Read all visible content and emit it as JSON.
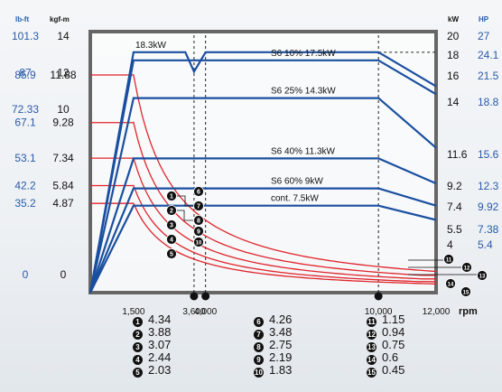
{
  "chart_data": {
    "type": "line",
    "xlabel": "rpm",
    "x_ticks": [
      "1,500",
      "3,600",
      "4,000",
      "10,000",
      "12,000"
    ],
    "xlim": [
      0,
      12000
    ],
    "left_axis_headers": [
      "lb-ft",
      "kgf-m"
    ],
    "lbft_ticks": [
      "101.3",
      "87",
      "85.9",
      "72.33",
      "67.1",
      "53.1",
      "42.2",
      "35.2",
      "0"
    ],
    "kgfm_ticks": [
      "14",
      "12",
      "11.88",
      "10",
      "9.28",
      "7.34",
      "5.84",
      "4.87",
      "0"
    ],
    "kgfm_tick_values": [
      14,
      12,
      11.88,
      10,
      9.28,
      7.34,
      5.84,
      4.87,
      0
    ],
    "right_axis_headers": [
      "kW",
      "HP"
    ],
    "kw_ticks": [
      "20",
      "18",
      "16",
      "14",
      "11.6",
      "9.2",
      "7.4",
      "5.5",
      "4"
    ],
    "kw_tick_values": [
      20,
      18,
      16,
      14,
      11.6,
      9.2,
      7.4,
      5.5,
      4
    ],
    "hp_ticks": [
      "27",
      "24.1",
      "21.5",
      "18.8",
      "15.6",
      "12.3",
      "9.92",
      "7.38",
      "5.4"
    ],
    "power_series": [
      {
        "name": "18.3kW",
        "points": [
          [
            0,
            0
          ],
          [
            1500,
            18.3
          ],
          [
            3300,
            18.3
          ],
          [
            3600,
            16.4
          ],
          [
            4000,
            18.3
          ],
          [
            10000,
            18.3
          ],
          [
            12000,
            15.2
          ]
        ]
      },
      {
        "name": "S6  10% 17.5kW",
        "points": [
          [
            0,
            0
          ],
          [
            1500,
            17.5
          ],
          [
            3600,
            17.5
          ],
          [
            10000,
            17.5
          ],
          [
            12000,
            14.6
          ]
        ]
      },
      {
        "name": "S6  25% 14.3kW",
        "points": [
          [
            0,
            0
          ],
          [
            1500,
            14.3
          ],
          [
            3600,
            14.3
          ],
          [
            10000,
            14.3
          ],
          [
            12000,
            11.9
          ]
        ]
      },
      {
        "name": "S6  40% 11.3kW",
        "points": [
          [
            0,
            0
          ],
          [
            1500,
            11.3
          ],
          [
            3600,
            11.3
          ],
          [
            10000,
            11.3
          ],
          [
            12000,
            9.4
          ]
        ]
      },
      {
        "name": "S6  60% 9kW",
        "points": [
          [
            0,
            0
          ],
          [
            1500,
            9.0
          ],
          [
            3600,
            9.0
          ],
          [
            10000,
            9.0
          ],
          [
            12000,
            7.5
          ]
        ]
      },
      {
        "name": "cont. 7.5kW",
        "points": [
          [
            0,
            0
          ],
          [
            1500,
            7.5
          ],
          [
            3600,
            7.5
          ],
          [
            10000,
            7.5
          ],
          [
            12000,
            6.3
          ]
        ]
      }
    ],
    "torque_series": [
      {
        "name": "1",
        "t0": 11.88,
        "t_end": 4.34,
        "t_12000": 1.15
      },
      {
        "name": "2",
        "t0": 9.28,
        "t_end": 3.88,
        "t_12000": 0.94
      },
      {
        "name": "3",
        "t0": 7.34,
        "t_end": 3.07,
        "t_12000": 0.75
      },
      {
        "name": "4",
        "t0": 5.84,
        "t_end": 2.44,
        "t_12000": 0.6
      },
      {
        "name": "5",
        "t0": 4.87,
        "t_end": 2.03,
        "t_12000": 0.45
      }
    ],
    "torque_markers": [
      {
        "id": "1",
        "value": "4.34"
      },
      {
        "id": "2",
        "value": "3.88"
      },
      {
        "id": "3",
        "value": "3.07"
      },
      {
        "id": "4",
        "value": "2.44"
      },
      {
        "id": "5",
        "value": "2.03"
      },
      {
        "id": "6",
        "value": "4.26"
      },
      {
        "id": "7",
        "value": "3.48"
      },
      {
        "id": "8",
        "value": "2.75"
      },
      {
        "id": "9",
        "value": "2.19"
      },
      {
        "id": "10",
        "value": "1.83"
      },
      {
        "id": "11",
        "value": "1.15"
      },
      {
        "id": "12",
        "value": "0.94"
      },
      {
        "id": "13",
        "value": "0.75"
      },
      {
        "id": "14",
        "value": "0.6"
      },
      {
        "id": "15",
        "value": "0.45"
      }
    ]
  },
  "legend": {
    "columns": [
      [
        {
          "num": "1",
          "value": "4.34"
        },
        {
          "num": "2",
          "value": "3.88"
        },
        {
          "num": "3",
          "value": "3.07"
        },
        {
          "num": "4",
          "value": "2.44"
        },
        {
          "num": "5",
          "value": "2.03"
        }
      ],
      [
        {
          "num": "6",
          "value": "4.26"
        },
        {
          "num": "7",
          "value": "3.48"
        },
        {
          "num": "8",
          "value": "2.75"
        },
        {
          "num": "9",
          "value": "2.19"
        },
        {
          "num": "10",
          "value": "1.83"
        }
      ],
      [
        {
          "num": "11",
          "value": "1.15"
        },
        {
          "num": "12",
          "value": "0.94"
        },
        {
          "num": "13",
          "value": "0.75"
        },
        {
          "num": "14",
          "value": "0.6"
        },
        {
          "num": "15",
          "value": "0.45"
        }
      ]
    ]
  },
  "colors": {
    "power": "#1a4fa0",
    "torque": "#e0242b",
    "frame": "#666666",
    "blue_text": "#2a5aa8"
  }
}
